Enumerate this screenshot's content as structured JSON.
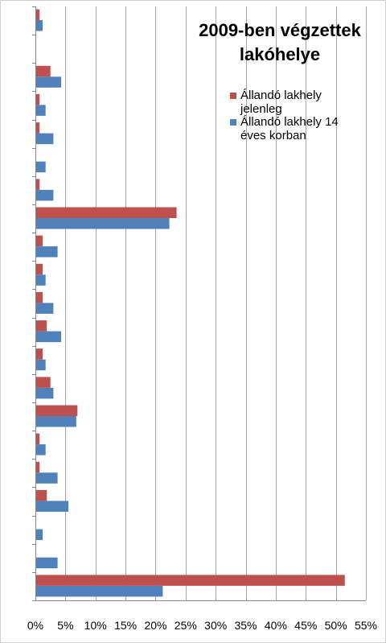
{
  "chart_data": {
    "type": "bar",
    "orientation": "horizontal",
    "title": "2009-ben végzettek lakóhelye",
    "title_lines": [
      "2009-ben végzettek",
      "lakóhelye"
    ],
    "xlabel": "",
    "ylabel": "",
    "xlim": [
      0,
      55
    ],
    "x_ticks": [
      0,
      5,
      10,
      15,
      20,
      25,
      30,
      35,
      40,
      45,
      50,
      55
    ],
    "x_tick_labels": [
      "0%",
      "5%",
      "10%",
      "15%",
      "20%",
      "25%",
      "30%",
      "35%",
      "40%",
      "45%",
      "50%",
      "55%"
    ],
    "grid": true,
    "legend_position": "top-right",
    "category_count": 21,
    "series": [
      {
        "name": "Állandó lakhely jelenleg",
        "legend_lines": [
          "Állandó lakhely",
          "jelenleg"
        ],
        "color": "#c0504d",
        "values": [
          0.7,
          0,
          2.5,
          0.7,
          0.7,
          0,
          0.7,
          23.5,
          1.2,
          1.2,
          1.2,
          1.9,
          1.2,
          2.5,
          7.0,
          0.7,
          0.7,
          1.9,
          0,
          0,
          51.5
        ]
      },
      {
        "name": "Állandó lakhely 14 éves korban",
        "legend_lines": [
          "Állandó lakhely 14",
          "éves korban"
        ],
        "color": "#4f81bd",
        "values": [
          1.2,
          0,
          4.3,
          1.7,
          3.0,
          1.7,
          3.0,
          22.3,
          3.7,
          1.7,
          3.0,
          4.3,
          1.7,
          3.0,
          6.8,
          1.7,
          3.7,
          5.5,
          1.2,
          3.7,
          21.2
        ]
      }
    ]
  }
}
